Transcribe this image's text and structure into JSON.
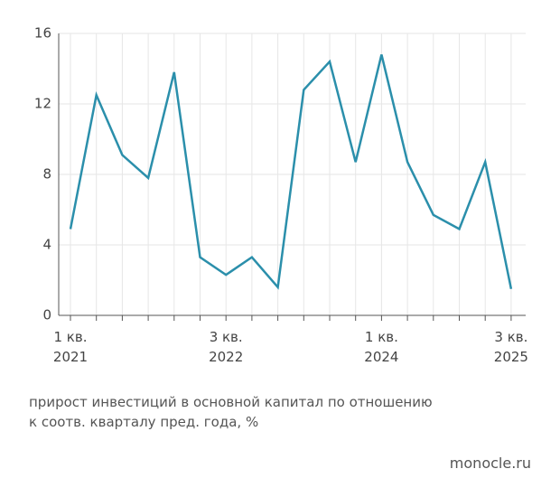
{
  "chart_data": {
    "type": "line",
    "categories": [
      "1 кв.\n2021",
      null,
      null,
      null,
      null,
      null,
      "3 кв.\n2022",
      null,
      null,
      null,
      null,
      null,
      "1 кв.\n2024",
      null,
      null,
      null,
      null,
      "3 кв.\n2025"
    ],
    "series": [
      {
        "color": "#2b8fab",
        "values": [
          4.9,
          12.5,
          9.1,
          7.8,
          13.8,
          3.3,
          2.3,
          3.3,
          1.6,
          12.8,
          14.4,
          8.7,
          14.8,
          8.7,
          5.7,
          4.9,
          8.7,
          1.5
        ]
      }
    ],
    "ylim": [
      0,
      16
    ],
    "yticks": [
      0,
      4,
      8,
      12,
      16
    ],
    "grid": true,
    "caption": "прирост инвестиций в основной капитал по отношению\nк соотв. кварталу пред. года, %",
    "source": "monocle.ru"
  }
}
